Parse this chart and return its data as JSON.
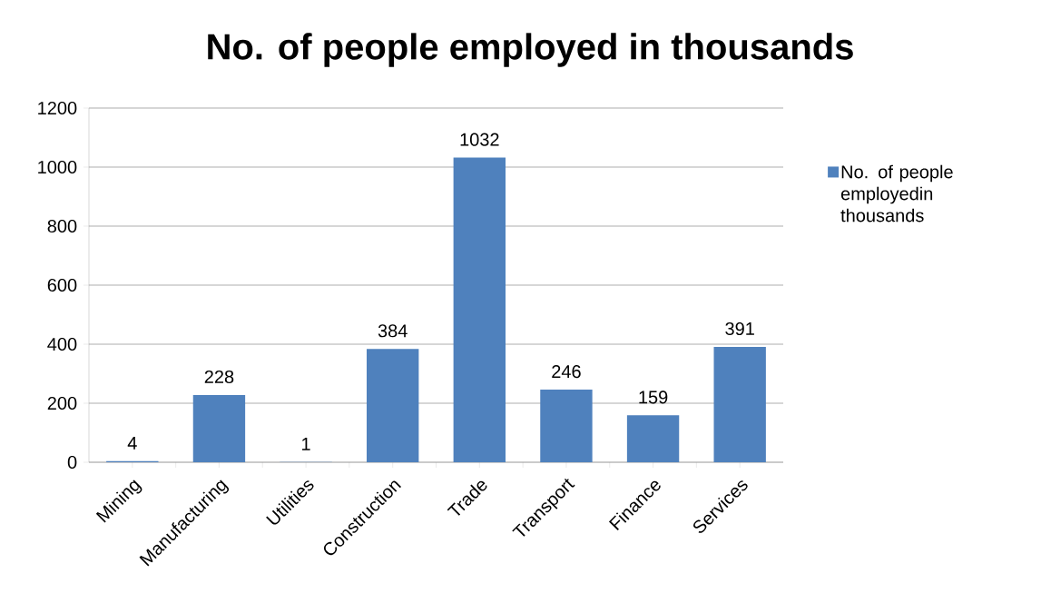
{
  "chart_data": {
    "type": "bar",
    "title": "No. of people employed in thousands",
    "categories": [
      "Mining",
      "Manufacturing",
      "Utilities",
      "Construction",
      "Trade",
      "Transport",
      "Finance",
      "Services"
    ],
    "series": [
      {
        "name": "No. of people employedin thousands",
        "color": "#4f81bd",
        "values": [
          4,
          228,
          1,
          384,
          1032,
          246,
          159,
          391
        ]
      }
    ],
    "ylim": [
      0,
      1200
    ],
    "yticks": [
      0,
      200,
      400,
      600,
      800,
      1000,
      1200
    ],
    "grid": "y",
    "legend": "right",
    "data_labels": true
  }
}
